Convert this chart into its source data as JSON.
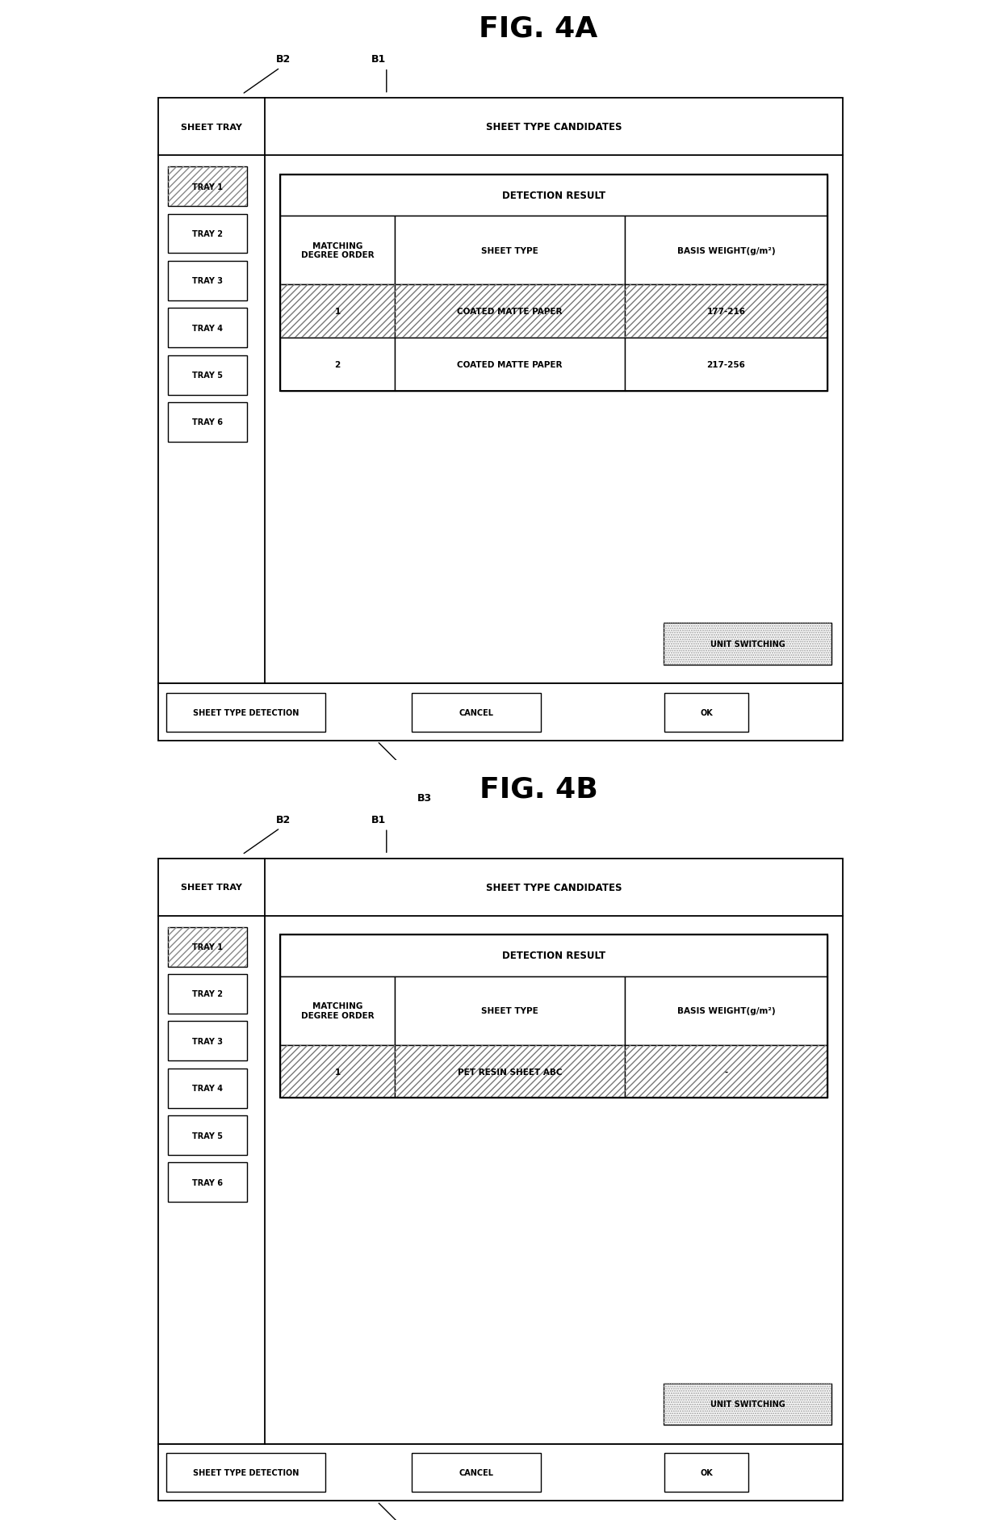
{
  "fig4a_title": "FIG. 4A",
  "fig4b_title": "FIG. 4B",
  "sheet_tray_label": "SHEET TRAY",
  "sheet_type_candidates_label": "SHEET TYPE CANDIDATES",
  "detection_result_label": "DETECTION RESULT",
  "col_headers": [
    "MATCHING\nDEGREE ORDER",
    "SHEET TYPE",
    "BASIS WEIGHT(g/m²)"
  ],
  "fig4a_rows": [
    {
      "order": "1",
      "sheet_type": "COATED MATTE PAPER",
      "basis_weight": "177-216",
      "hatched": true
    },
    {
      "order": "2",
      "sheet_type": "COATED MATTE PAPER",
      "basis_weight": "217-256",
      "hatched": false
    }
  ],
  "fig4b_rows": [
    {
      "order": "1",
      "sheet_type": "PET RESIN SHEET ABC",
      "basis_weight": "-",
      "hatched": true
    }
  ],
  "tray_labels": [
    "TRAY 1",
    "TRAY 2",
    "TRAY 3",
    "TRAY 4",
    "TRAY 5",
    "TRAY 6"
  ],
  "tray1_hatched": true,
  "bottom_buttons": [
    "SHEET TYPE DETECTION",
    "CANCEL",
    "OK"
  ],
  "unit_switching_label": "UNIT SWITCHING",
  "b1_label": "B1",
  "b2_label": "B2",
  "b3_label": "B3",
  "bg_color": "#ffffff",
  "line_color": "#000000",
  "font_size_title": 26,
  "font_size_header": 8.5,
  "font_size_cell": 7.5,
  "font_size_tray": 7,
  "font_size_btn": 7,
  "font_size_blabel": 9
}
